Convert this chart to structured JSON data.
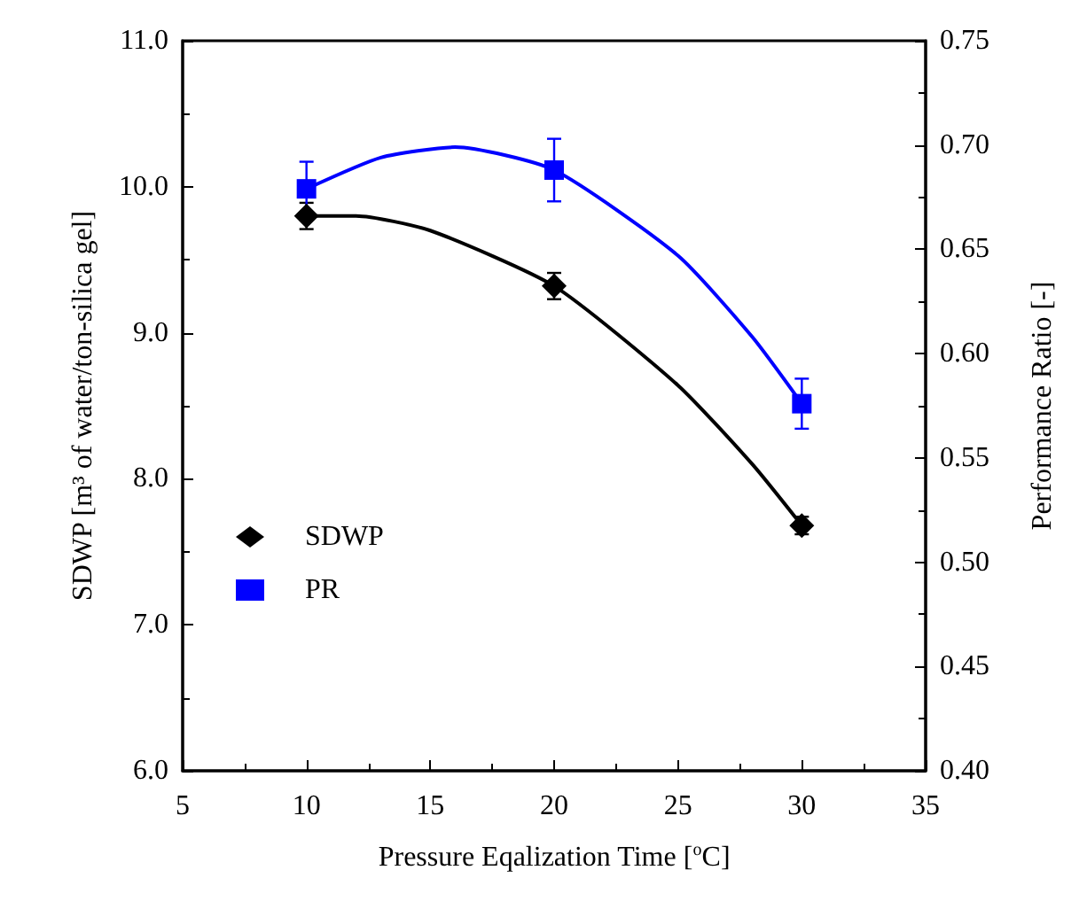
{
  "chart_data": {
    "type": "scatter",
    "xlabel": "Pressure Eqalization Time [$^{o}$C]",
    "ylabel": "SDWP [m³ of water/ton-silica gel]",
    "y2label": "Performance Ratio [-]",
    "xlim": [
      5,
      35
    ],
    "xticks": [
      5,
      10,
      15,
      20,
      25,
      30,
      35
    ],
    "ylim": [
      6,
      11
    ],
    "yticks": [
      {
        "value": 6,
        "label": "6.0"
      },
      {
        "value": 7,
        "label": "7.0"
      },
      {
        "value": 8,
        "label": "8.0"
      },
      {
        "value": 9,
        "label": "9.0"
      },
      {
        "value": 10,
        "label": "10.0"
      },
      {
        "value": 11,
        "label": "11.0"
      }
    ],
    "y2lim": [
      0.4,
      0.75
    ],
    "y2ticks": [
      {
        "value": 0.4,
        "label": "0.40"
      },
      {
        "value": 0.45,
        "label": "0.45"
      },
      {
        "value": 0.5,
        "label": "0.50"
      },
      {
        "value": 0.55,
        "label": "0.55"
      },
      {
        "value": 0.6,
        "label": "0.60"
      },
      {
        "value": 0.65,
        "label": "0.65"
      },
      {
        "value": 0.7,
        "label": "0.70"
      },
      {
        "value": 0.75,
        "label": "0.75"
      }
    ],
    "legend": "left",
    "grid": false,
    "series": [
      {
        "name": "SDWP",
        "marker": "diamond",
        "color": "#000000",
        "x": [
          10,
          20,
          30
        ],
        "values": [
          9.8,
          9.32,
          7.68
        ],
        "errors": [
          0.09,
          0.09,
          0.06
        ]
      },
      {
        "name": "PR",
        "marker": "square",
        "color": "#0000ff",
        "axis": "y2",
        "x": [
          10,
          20,
          30
        ],
        "values": [
          0.679,
          0.688,
          0.576
        ],
        "errors": [
          0.013,
          0.015,
          0.012
        ]
      },
      {
        "type": "line",
        "marker": "none",
        "color": "#000000",
        "x": [
          10,
          12,
          15,
          20,
          25,
          28,
          30
        ],
        "values": [
          9.8,
          9.8,
          9.7,
          9.32,
          8.64,
          8.1,
          7.68
        ]
      },
      {
        "type": "line",
        "marker": "none",
        "color": "#0000ff",
        "axis": "y2",
        "x": [
          10,
          13,
          16,
          20,
          25,
          28,
          30
        ],
        "values": [
          0.679,
          0.694,
          0.699,
          0.688,
          0.647,
          0.608,
          0.576
        ]
      }
    ]
  }
}
